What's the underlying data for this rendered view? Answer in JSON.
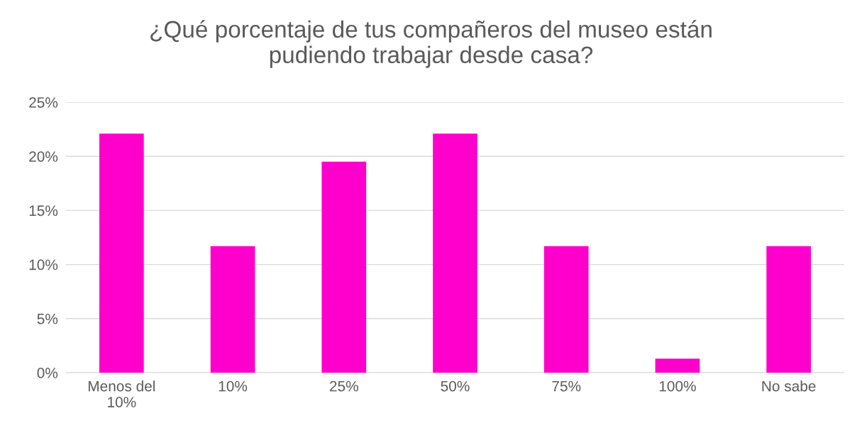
{
  "chart_data": {
    "type": "bar",
    "title": "¿Qué porcentaje de tus compañeros del museo están\npudiendo trabajar desde casa?",
    "categories": [
      "Menos del\n10%",
      "10%",
      "25%",
      "50%",
      "75%",
      "100%",
      "No sabe"
    ],
    "values": [
      22.1,
      11.7,
      19.5,
      22.1,
      11.7,
      1.3,
      11.7
    ],
    "color": "#ff00cc",
    "ylim": [
      0,
      25
    ],
    "yticks": [
      {
        "value": 0,
        "label": "0%"
      },
      {
        "value": 5,
        "label": "5%"
      },
      {
        "value": 10,
        "label": "10%"
      },
      {
        "value": 15,
        "label": "15%"
      },
      {
        "value": 20,
        "label": "20%"
      },
      {
        "value": 25,
        "label": "25%"
      }
    ],
    "grid": "y"
  }
}
